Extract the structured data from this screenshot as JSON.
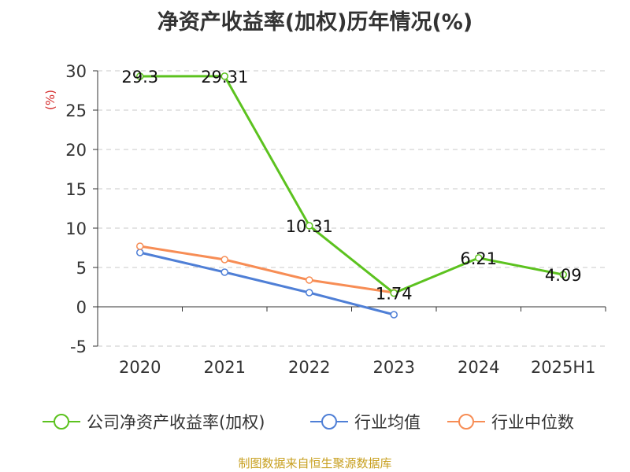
{
  "chart_data": {
    "type": "line",
    "title": "净资产收益率(加权)历年情况(%)",
    "ylabel": "(%)",
    "xlabel": "",
    "categories": [
      "2020",
      "2021",
      "2022",
      "2023",
      "2024",
      "2025H1"
    ],
    "ylim": [
      -5,
      30
    ],
    "yticks": [
      -5,
      0,
      5,
      10,
      15,
      20,
      25,
      30
    ],
    "grid": true,
    "legend_position": "bottom",
    "series": [
      {
        "name": "公司净资产收益率(加权)",
        "color": "#5cc21f",
        "values": [
          29.3,
          29.31,
          10.31,
          1.74,
          6.21,
          4.09
        ],
        "labels": [
          "29.3",
          "29.31",
          "10.31",
          "1.74",
          "6.21",
          "4.09"
        ]
      },
      {
        "name": "行业均值",
        "color": "#4f7fd6",
        "values": [
          6.9,
          4.4,
          1.8,
          -1.0,
          null,
          null
        ]
      },
      {
        "name": "行业中位数",
        "color": "#f78d55",
        "values": [
          7.7,
          6.0,
          3.4,
          1.8,
          null,
          null
        ]
      }
    ]
  },
  "source": "制图数据来自恒生聚源数据库"
}
